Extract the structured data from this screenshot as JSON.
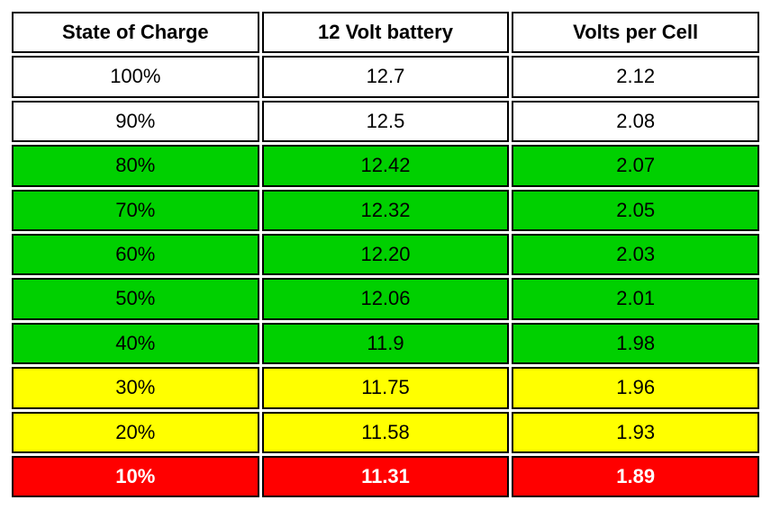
{
  "table": {
    "type": "table",
    "columns": [
      "State of Charge",
      "12 Volt battery",
      "Volts per Cell"
    ],
    "column_widths": [
      "33.3%",
      "33.3%",
      "33.3%"
    ],
    "header_style": {
      "background": "#ffffff",
      "color": "#000000",
      "font_weight": "bold",
      "font_size": 22,
      "border_color": "#000000"
    },
    "row_colors": {
      "white": {
        "background": "#ffffff",
        "text": "#000000",
        "bold": false
      },
      "green": {
        "background": "#00d000",
        "text": "#000000",
        "bold": false
      },
      "yellow": {
        "background": "#ffff00",
        "text": "#000000",
        "bold": false
      },
      "red": {
        "background": "#ff0000",
        "text": "#ffffff",
        "bold": true
      }
    },
    "rows": [
      {
        "cells": [
          "100%",
          "12.7",
          "2.12"
        ],
        "color": "white"
      },
      {
        "cells": [
          "90%",
          "12.5",
          "2.08"
        ],
        "color": "white"
      },
      {
        "cells": [
          "80%",
          "12.42",
          "2.07"
        ],
        "color": "green"
      },
      {
        "cells": [
          "70%",
          "12.32",
          "2.05"
        ],
        "color": "green"
      },
      {
        "cells": [
          "60%",
          "12.20",
          "2.03"
        ],
        "color": "green"
      },
      {
        "cells": [
          "50%",
          "12.06",
          "2.01"
        ],
        "color": "green"
      },
      {
        "cells": [
          "40%",
          "11.9",
          "1.98"
        ],
        "color": "green"
      },
      {
        "cells": [
          "30%",
          "11.75",
          "1.96"
        ],
        "color": "yellow"
      },
      {
        "cells": [
          "20%",
          "11.58",
          "1.93"
        ],
        "color": "yellow"
      },
      {
        "cells": [
          "10%",
          "11.31",
          "1.89"
        ],
        "color": "red"
      }
    ],
    "border_spacing": 3,
    "cell_border_width": 2,
    "cell_border_color": "#000000",
    "font_family": "Arial",
    "font_size": 22
  }
}
